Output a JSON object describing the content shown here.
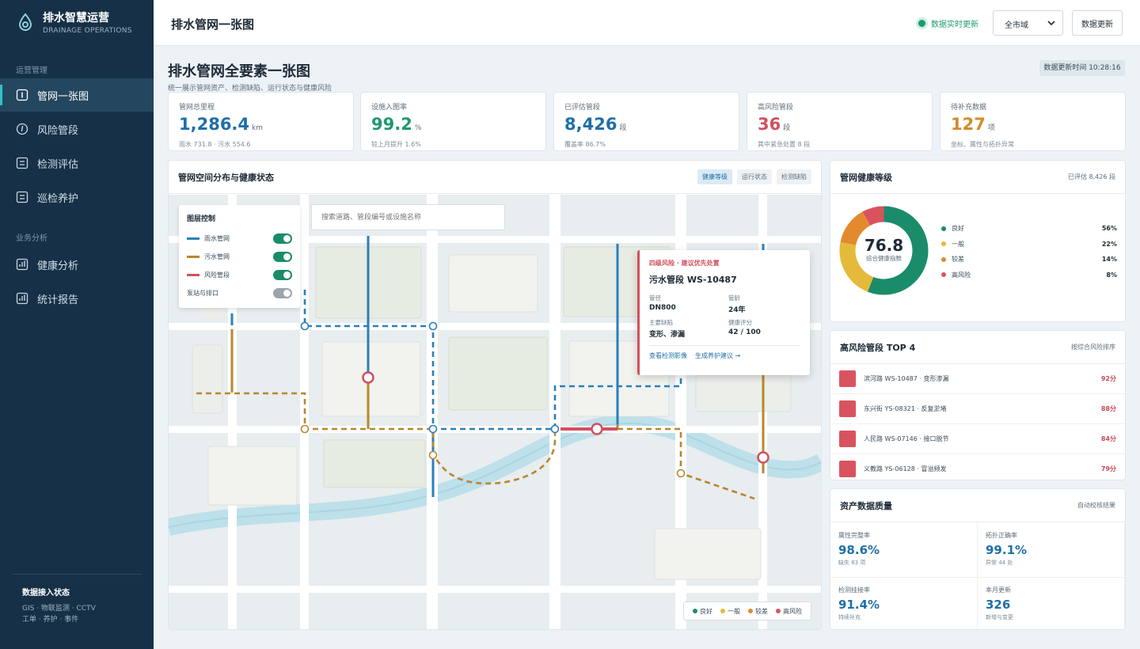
{
  "brand": {
    "title": "排水智慧运营",
    "subtitle": "DRAINAGE OPERATIONS"
  },
  "sidebar": {
    "section_ops": "运营管理",
    "section_biz": "业务分析",
    "items": [
      {
        "label": "管网一张图",
        "icon": "map-icon",
        "active": true
      },
      {
        "label": "风险管段",
        "icon": "alert-icon"
      },
      {
        "label": "检测评估",
        "icon": "document-icon"
      },
      {
        "label": "巡检养护",
        "icon": "clipboard-icon"
      },
      {
        "label": "健康分析",
        "icon": "bar-chart-icon"
      },
      {
        "label": "统计报告",
        "icon": "report-icon"
      }
    ],
    "footer_title": "数据接入状态",
    "footer_line1": "GIS · 物联监测 · CCTV",
    "footer_line2": "工单 · 养护 · 事件"
  },
  "header": {
    "title": "排水管网一张图",
    "live": "数据实时更新",
    "region": "全市域",
    "refresh": "数据更新"
  },
  "page": {
    "title": "排水管网全要素一张图",
    "subtitle": "统一展示管网资产、检测缺陷、运行状态与健康风险",
    "update_time": "数据更新时间 10:28:16"
  },
  "kpis": [
    {
      "label": "管网总里程",
      "value": "1,286.4",
      "unit": "km",
      "note": "雨水 731.8 · 污水 554.6",
      "color": "#1f6fa8"
    },
    {
      "label": "设施入图率",
      "value": "99.2",
      "unit": "%",
      "note": "较上月提升 1.6%",
      "color": "#1e9a6e"
    },
    {
      "label": "已评估管段",
      "value": "8,426",
      "unit": "段",
      "note": "覆盖率 86.7%",
      "color": "#1f6fa8"
    },
    {
      "label": "高风险管段",
      "value": "36",
      "unit": "段",
      "note": "其中紧急处置 8 段",
      "color": "#d2505d"
    },
    {
      "label": "待补充数据",
      "value": "127",
      "unit": "项",
      "note": "坐标、属性与拓扑异常",
      "color": "#d28b2a"
    }
  ],
  "map": {
    "title": "管网空间分布与健康状态",
    "tabs": [
      "健康等级",
      "运行状态",
      "检测缺陷"
    ],
    "layer_title": "图层控制",
    "layers": [
      {
        "label": "雨水管网",
        "color": "#2a7fba",
        "on": true
      },
      {
        "label": "污水管网",
        "color": "#b8862e",
        "on": true
      },
      {
        "label": "风险管段",
        "color": "#d2505d",
        "on": true
      },
      {
        "label": "泵站与排口",
        "on": false
      }
    ],
    "search_placeholder": "搜索道路、管段编号或设施名称",
    "popup": {
      "risk": "四级风险 · 建议优先处置",
      "name": "污水管段 WS-10487",
      "k1": "管径",
      "v1": "DN800",
      "k2": "管龄",
      "v2": "24年",
      "k3": "主要缺陷",
      "v3": "变形、渗漏",
      "k4": "健康评分",
      "v4": "42 / 100",
      "link1": "查看检测影像",
      "link2": "生成养护建议 →"
    },
    "legend": [
      "良好",
      "一般",
      "较差",
      "高风险"
    ]
  },
  "health": {
    "title": "管网健康等级",
    "note": "已评估 8,426 段",
    "score": "76.8",
    "score_label": "综合健康指数",
    "levels": [
      {
        "label": "良好",
        "pct": "56%",
        "value": 56,
        "color": "#1a8c6a"
      },
      {
        "label": "一般",
        "pct": "22%",
        "value": 22,
        "color": "#e5b93a"
      },
      {
        "label": "较差",
        "pct": "14%",
        "value": 14,
        "color": "#e38a2e"
      },
      {
        "label": "高风险",
        "pct": "8%",
        "value": 8,
        "color": "#d9535f"
      }
    ]
  },
  "risk_top": {
    "title": "高风险管段 TOP 4",
    "note": "按综合风险排序",
    "items": [
      {
        "name": "滨河路 WS-10487 · 变形渗漏",
        "score": "92分"
      },
      {
        "name": "东兴街 YS-08321 · 反复淤堵",
        "score": "88分"
      },
      {
        "name": "人民路 WS-07146 · 接口脱节",
        "score": "84分"
      },
      {
        "name": "义教路 YS-06128 · 冒溢频发",
        "score": "79分"
      }
    ]
  },
  "quality": {
    "title": "资产数据质量",
    "note": "自动校核结果",
    "cells": [
      {
        "label": "属性完整率",
        "value": "98.6%",
        "note": "缺失 83 项"
      },
      {
        "label": "拓扑正确率",
        "value": "99.1%",
        "note": "异常 44 处"
      },
      {
        "label": "检测挂接率",
        "value": "91.4%",
        "note": "持续补充"
      },
      {
        "label": "本月更新",
        "value": "326",
        "note": "新增与变更"
      }
    ]
  }
}
